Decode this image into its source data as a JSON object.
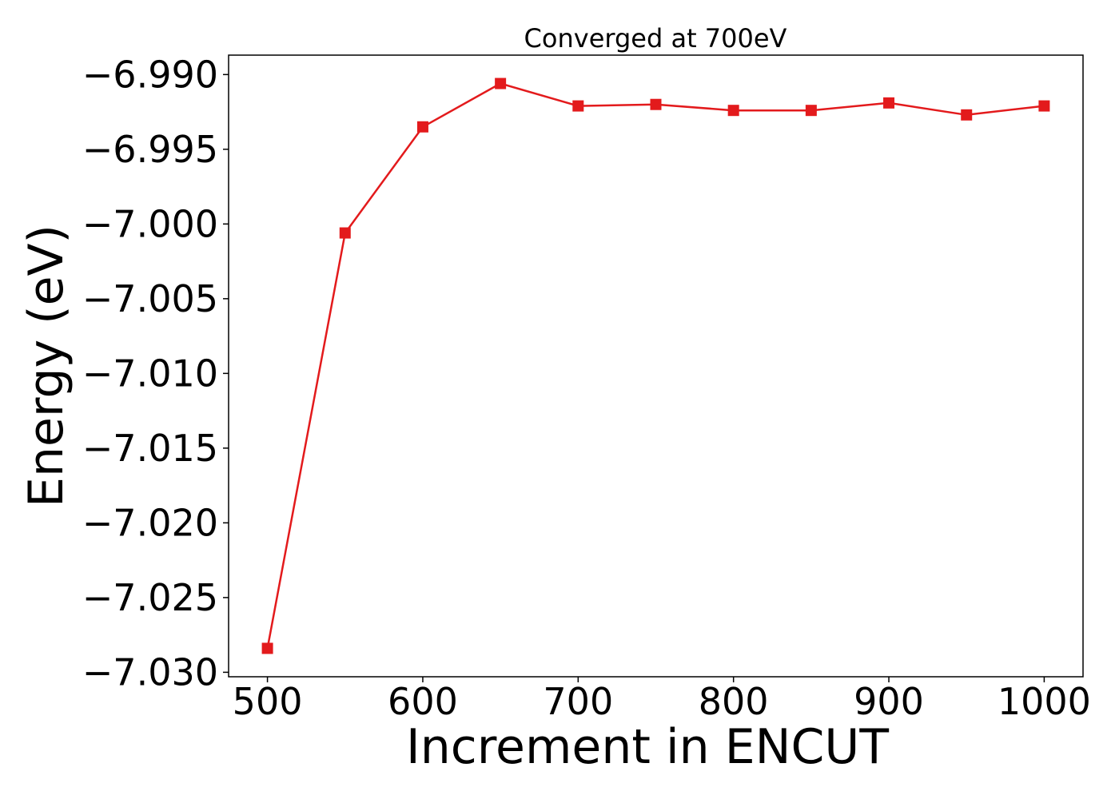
{
  "chart_data": {
    "type": "line",
    "title": "Converged at 700eV",
    "xlabel": "Increment in ENCUT",
    "ylabel": "Energy (eV)",
    "x": [
      500,
      550,
      600,
      650,
      700,
      750,
      800,
      850,
      900,
      950,
      1000
    ],
    "series": [
      {
        "values": [
          -7.0284,
          -7.0006,
          -6.9935,
          -6.9906,
          -6.9921,
          -6.992,
          -6.9924,
          -6.9924,
          -6.9919,
          -6.9927,
          -6.9921
        ],
        "color": "#e31a1c",
        "marker": "square"
      }
    ],
    "xticks": [
      500,
      600,
      700,
      800,
      900,
      1000
    ],
    "xtick_labels": [
      "500",
      "600",
      "700",
      "800",
      "900",
      "1000"
    ],
    "yticks": [
      -6.99,
      -6.995,
      -7.0,
      -7.005,
      -7.01,
      -7.015,
      -7.02,
      -7.025,
      -7.03
    ],
    "ytick_labels": [
      "−6.990",
      "−6.995",
      "−7.000",
      "−7.005",
      "−7.010",
      "−7.015",
      "−7.020",
      "−7.025",
      "−7.030"
    ],
    "xlim": [
      475,
      1025
    ],
    "ylim": [
      -7.0303,
      -6.9887
    ],
    "grid": false,
    "legend": "none"
  }
}
